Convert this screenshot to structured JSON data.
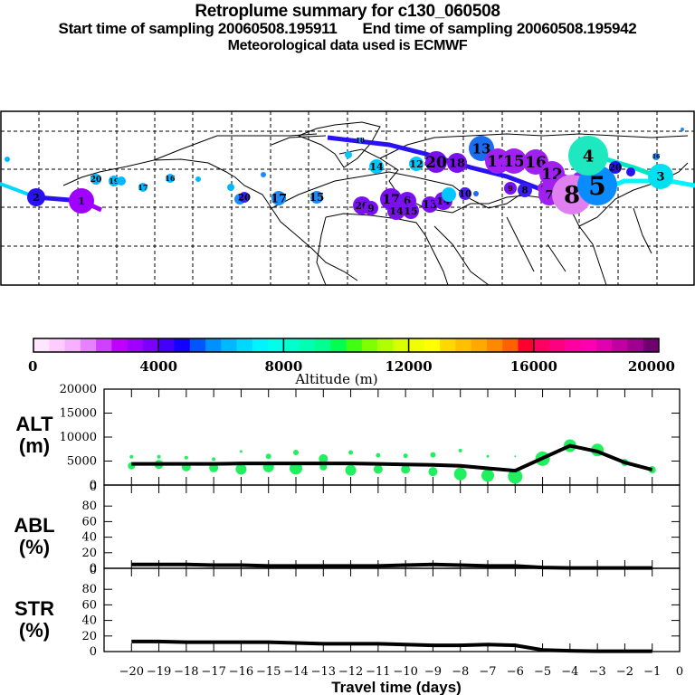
{
  "header": {
    "title": "Retroplume summary for c130_060508",
    "start_label": "Start time of sampling 20060508.195911",
    "end_label": "End time of sampling 20060508.195942",
    "met_label": "Meteorological data used is ECMWF"
  },
  "map": {
    "description": "Retroplume cluster trajectories over Northern Hemisphere map (Pacific-centered), numbered circles = days back",
    "clusters": [
      {
        "day": 1,
        "lon": -155,
        "lat": 42,
        "alt_m": 3200,
        "color": "#b000e8",
        "size": "large"
      },
      {
        "day": 2,
        "lon": -177,
        "lat": 43,
        "alt_m": 4500,
        "color": "#2a12f0",
        "size": "medium"
      },
      {
        "day": 4,
        "lon": 150,
        "lat": 58,
        "alt_m": 8200,
        "color": "#1de8c0",
        "size": "large"
      },
      {
        "day": 5,
        "lon": 138,
        "lat": 44,
        "alt_m": 6200,
        "color": "#0a8cff",
        "size": "large"
      },
      {
        "day": 8,
        "lon": 120,
        "lat": 38,
        "alt_m": 1500,
        "color": "#e080f0",
        "size": "large"
      },
      {
        "day": 12,
        "lon": 105,
        "lat": 48,
        "alt_m": 3000,
        "color": "#a020f0",
        "size": "large"
      },
      {
        "day": 16,
        "lon": 100,
        "lat": 56,
        "alt_m": 2500,
        "color": "#a020f0",
        "size": "large"
      },
      {
        "day": 15,
        "lon": 90,
        "lat": 57,
        "alt_m": 3000,
        "color": "#a020f0",
        "size": "large"
      },
      {
        "day": 17,
        "lon": 82,
        "lat": 57,
        "alt_m": 3000,
        "color": "#a020f0",
        "size": "large"
      },
      {
        "day": 13,
        "lon": 72,
        "lat": 62,
        "alt_m": 5000,
        "color": "#2a6cf0",
        "size": "medium"
      },
      {
        "day": 7,
        "lon": 110,
        "lat": 45,
        "alt_m": 1800,
        "color": "#a020f0",
        "size": "medium"
      },
      {
        "day": 9,
        "lon": 116,
        "lat": 47,
        "alt_m": 2500,
        "color": "#a020f0",
        "size": "medium"
      },
      {
        "day": 20,
        "lon": 50,
        "lat": 57,
        "alt_m": 3500,
        "color": "#7a10f0",
        "size": "large"
      },
      {
        "day": 17,
        "lon": 27,
        "lat": 43,
        "alt_m": 3200,
        "color": "#7a10f0",
        "size": "large"
      },
      {
        "day": 13,
        "lon": 37,
        "lat": 42,
        "alt_m": 3200,
        "color": "#7a10f0",
        "size": "medium"
      },
      {
        "day": 15,
        "lon": -28,
        "lat": 45,
        "alt_m": 5800,
        "color": "#1a8cff",
        "size": "small"
      },
      {
        "day": 17,
        "lon": -43,
        "lat": 44,
        "alt_m": 5500,
        "color": "#1a8cff",
        "size": "small"
      },
      {
        "day": 14,
        "lon": -8,
        "lat": 55,
        "alt_m": 6500,
        "color": "#00c8ff",
        "size": "small"
      },
      {
        "day": 3,
        "lon": 172,
        "lat": 49,
        "alt_m": 7200,
        "color": "#00e8ff",
        "size": "medium"
      }
    ]
  },
  "colorbar": {
    "label": "Altitude (m)",
    "ticks": [
      "0",
      "4000",
      "8000",
      "12000",
      "16000",
      "20000"
    ],
    "min": 0,
    "max": 20000,
    "colors": [
      "#ffe6ff",
      "#ffccff",
      "#f5b0ff",
      "#e682ff",
      "#d040ff",
      "#c000ff",
      "#a000ff",
      "#7a00ff",
      "#4400ff",
      "#1400ff",
      "#0055ff",
      "#0090ff",
      "#00b8ff",
      "#00d8ff",
      "#00f4ff",
      "#00ffe8",
      "#00ffcc",
      "#00ffb0",
      "#00ff90",
      "#00ff50",
      "#40ff10",
      "#80ff00",
      "#b0ff00",
      "#d8ff00",
      "#f0ff00",
      "#ffff00",
      "#ffd800",
      "#ffc000",
      "#ffa800",
      "#ff8800",
      "#ff6000",
      "#ff0030",
      "#ff0060",
      "#ff0080",
      "#ff00a0",
      "#ff00b0",
      "#e000b0",
      "#c000a0",
      "#a00090",
      "#700070"
    ]
  },
  "chart_data": [
    {
      "type": "line",
      "panel": "ALT",
      "ylabel": "ALT\n(m)",
      "ylabel_top": "ALT",
      "ylabel_bottom": "(m)",
      "ylim": [
        0,
        20000
      ],
      "yticks": [
        "0",
        "5000",
        "10000",
        "15000",
        "20000"
      ],
      "x": [
        -20,
        -19,
        -18,
        -17,
        -16,
        -15,
        -14,
        -13,
        -12,
        -11,
        -10,
        -9,
        -8,
        -7,
        -6,
        -5,
        -4,
        -3,
        -2,
        -1
      ],
      "series": [
        {
          "name": "mean altitude",
          "color": "#000000",
          "values": [
            4400,
            4400,
            4400,
            4400,
            4500,
            4500,
            4500,
            4500,
            4500,
            4400,
            4300,
            4200,
            4000,
            3500,
            3000,
            5600,
            8200,
            7000,
            4700,
            3200
          ]
        }
      ],
      "clusters": [
        {
          "x": -20,
          "y": [
            5900,
            4000
          ],
          "r": [
            2,
            4
          ]
        },
        {
          "x": -19,
          "y": [
            5900,
            4300
          ],
          "r": [
            2,
            5
          ]
        },
        {
          "x": -18,
          "y": [
            5700,
            3800
          ],
          "r": [
            2,
            5
          ]
        },
        {
          "x": -17,
          "y": [
            5400,
            3600
          ],
          "r": [
            2,
            5
          ]
        },
        {
          "x": -16,
          "y": [
            7000,
            3300
          ],
          "r": [
            1.5,
            6
          ]
        },
        {
          "x": -15,
          "y": [
            6000,
            3800
          ],
          "r": [
            3,
            6
          ]
        },
        {
          "x": -14,
          "y": [
            6800,
            3500
          ],
          "r": [
            3,
            7
          ]
        },
        {
          "x": -13,
          "y": [
            5500,
            3800
          ],
          "r": [
            5,
            4
          ]
        },
        {
          "x": -12,
          "y": [
            6800,
            3100
          ],
          "r": [
            2.5,
            6
          ]
        },
        {
          "x": -11,
          "y": [
            6200,
            3300
          ],
          "r": [
            2.5,
            5
          ]
        },
        {
          "x": -10,
          "y": [
            6100,
            3300
          ],
          "r": [
            2.5,
            5
          ]
        },
        {
          "x": -9,
          "y": [
            6300,
            2800
          ],
          "r": [
            3,
            5
          ]
        },
        {
          "x": -8,
          "y": [
            7200,
            2300
          ],
          "r": [
            2,
            7
          ]
        },
        {
          "x": -7,
          "y": [
            6000,
            2000
          ],
          "r": [
            1.5,
            7
          ]
        },
        {
          "x": -6,
          "y": [
            6000,
            1800
          ],
          "r": [
            1,
            8
          ]
        },
        {
          "x": -5,
          "y": [
            5500
          ],
          "r": [
            8
          ]
        },
        {
          "x": -4,
          "y": [
            8200
          ],
          "r": [
            7
          ]
        },
        {
          "x": -3,
          "y": [
            7300
          ],
          "r": [
            7
          ]
        },
        {
          "x": -2,
          "y": [
            4700
          ],
          "r": [
            4
          ]
        },
        {
          "x": -1,
          "y": [
            3200
          ],
          "r": [
            4
          ]
        }
      ],
      "cluster_color": "#20f060"
    },
    {
      "type": "line",
      "panel": "ABL",
      "ylabel_top": "ABL",
      "ylabel_bottom": "(%)",
      "ylim": [
        0,
        100
      ],
      "yticks": [
        "0",
        "20",
        "40",
        "60",
        "80",
        "0"
      ],
      "x": [
        -20,
        -19,
        -18,
        -17,
        -16,
        -15,
        -14,
        -13,
        -12,
        -11,
        -10,
        -9,
        -8,
        -7,
        -6,
        -5,
        -4,
        -3,
        -2,
        -1
      ],
      "series": [
        {
          "name": "ABL fraction",
          "color": "#000000",
          "values": [
            5,
            5,
            5,
            4,
            4,
            3,
            3,
            3,
            3,
            3,
            4,
            5,
            4,
            3,
            3,
            1,
            0.5,
            0.5,
            0.5,
            0.5
          ]
        }
      ]
    },
    {
      "type": "line",
      "panel": "STR",
      "ylabel_top": "STR",
      "ylabel_bottom": "(%)",
      "ylim": [
        0,
        100
      ],
      "yticks": [
        "0",
        "20",
        "40",
        "60",
        "80",
        "0"
      ],
      "x": [
        -20,
        -19,
        -18,
        -17,
        -16,
        -15,
        -14,
        -13,
        -12,
        -11,
        -10,
        -9,
        -8,
        -7,
        -6,
        -5,
        -4,
        -3,
        -2,
        -1
      ],
      "series": [
        {
          "name": "stratospheric fraction",
          "color": "#000000",
          "values": [
            13,
            13,
            12,
            12,
            12,
            12,
            11,
            10,
            10,
            10,
            9,
            8,
            8,
            9,
            8,
            2,
            1,
            0.5,
            0.5,
            0.5
          ]
        }
      ]
    }
  ],
  "xaxis": {
    "label": "Travel time (days)",
    "ticks": [
      "−20",
      "−19",
      "−18",
      "−17",
      "−16",
      "−15",
      "−14",
      "−13",
      "−12",
      "−11",
      "−10",
      "−9",
      "−8",
      "−7",
      "−6",
      "−5",
      "−4",
      "−3",
      "−2",
      "−1",
      "0"
    ],
    "range": [
      -21,
      0
    ]
  }
}
